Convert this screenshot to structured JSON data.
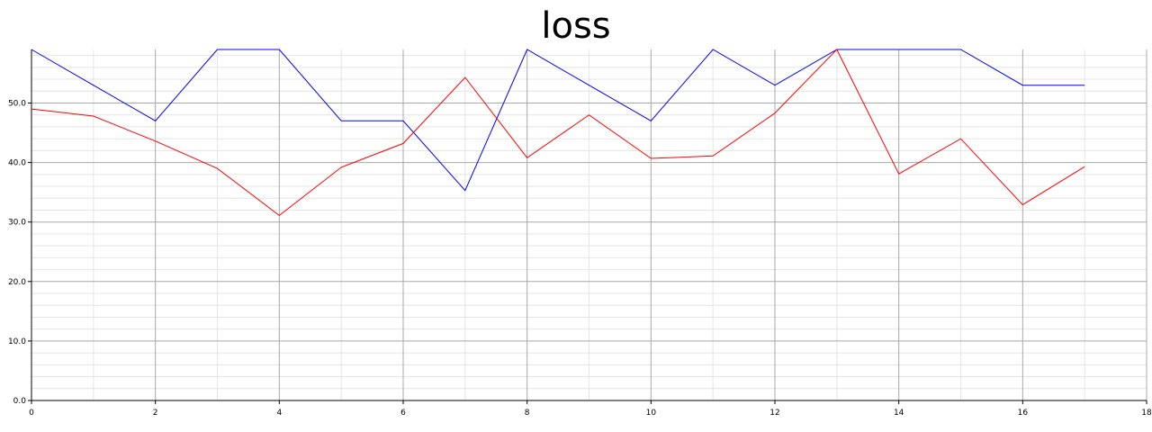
{
  "chart_data": {
    "type": "line",
    "title": "loss",
    "xlabel": "",
    "ylabel": "",
    "xlim": [
      0,
      18
    ],
    "ylim": [
      0,
      59
    ],
    "x_ticks": [
      "0",
      "2",
      "4",
      "6",
      "8",
      "10",
      "12",
      "14",
      "16",
      "18"
    ],
    "y_ticks": [
      "0.0",
      "10.0",
      "20.0",
      "30.0",
      "40.0",
      "50.0"
    ],
    "grid": true,
    "x": [
      0,
      1,
      2,
      3,
      4,
      5,
      6,
      7,
      8,
      9,
      10,
      11,
      12,
      13,
      14,
      15,
      16,
      17
    ],
    "series": [
      {
        "color": "#0000ff",
        "values": [
          59,
          53,
          47,
          59,
          59,
          47,
          47,
          35.3,
          59,
          53,
          47,
          59,
          53,
          59,
          59,
          59,
          53,
          53
        ]
      },
      {
        "color": "#ff0000",
        "values": [
          49,
          47.8,
          43.6,
          39,
          31.1,
          39.2,
          43.2,
          54.3,
          40.8,
          48,
          40.7,
          41.1,
          48.3,
          59,
          38.1,
          44,
          32.9,
          39.3
        ]
      }
    ]
  }
}
